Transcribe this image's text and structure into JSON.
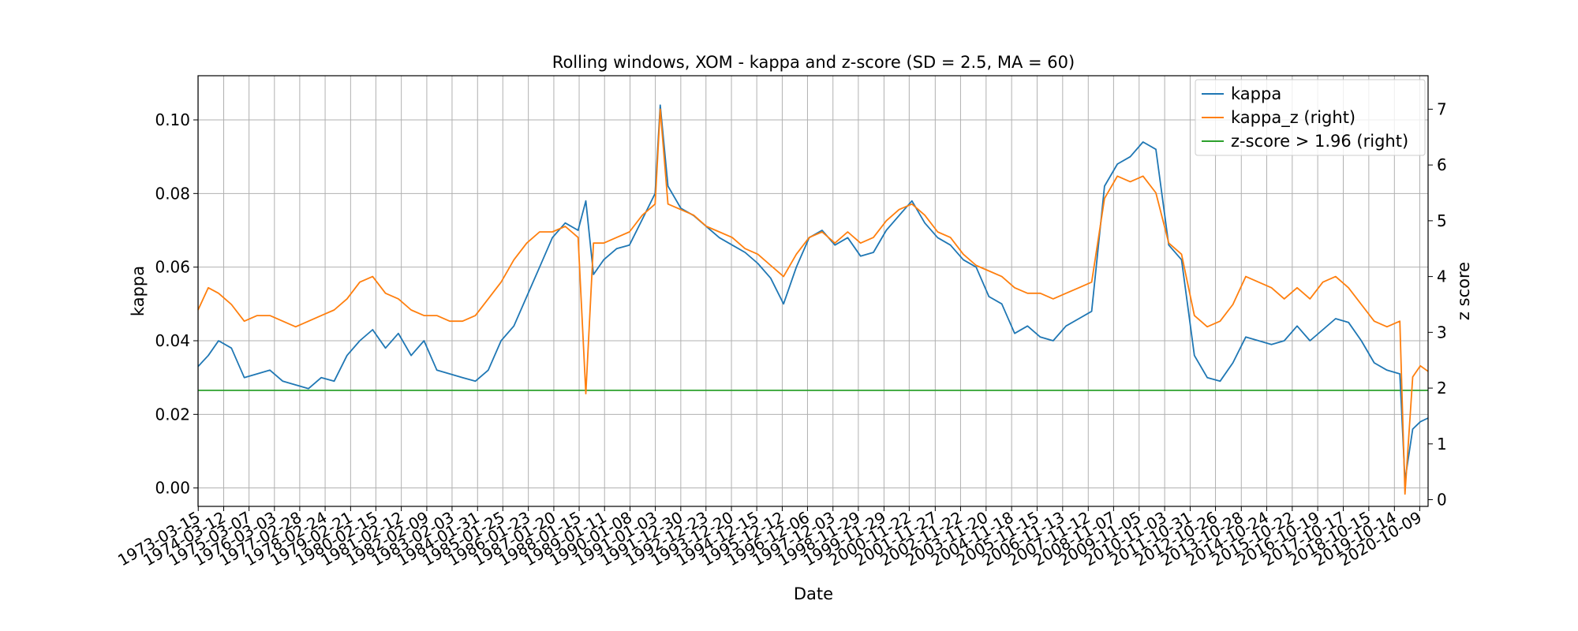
{
  "chart_data": {
    "type": "line",
    "title": "Rolling windows, XOM - kappa and z-score (SD = 2.5, MA = 60)",
    "xlabel": "Date",
    "ylabel": "kappa",
    "ylabel_right": "z score",
    "ylim": [
      -0.005,
      0.112
    ],
    "ylim_right": [
      -0.12,
      7.6
    ],
    "yticks": [
      "0.00",
      "0.02",
      "0.04",
      "0.06",
      "0.08",
      "0.10"
    ],
    "yticks_right": [
      "0",
      "1",
      "2",
      "3",
      "4",
      "5",
      "6",
      "7"
    ],
    "xlim": [
      1973.2,
      2021.1
    ],
    "xticks": [
      "1973-03-15",
      "1974-03-12",
      "1975-03-07",
      "1976-03-03",
      "1977-02-28",
      "1978-02-24",
      "1979-02-21",
      "1980-02-15",
      "1981-02-12",
      "1982-02-09",
      "1983-02-03",
      "1984-01-31",
      "1985-01-25",
      "1986-01-23",
      "1987-01-20",
      "1988-01-15",
      "1989-01-11",
      "1990-01-08",
      "1991-01-03",
      "1991-12-30",
      "1992-12-23",
      "1993-12-20",
      "1994-12-15",
      "1995-12-12",
      "1996-12-06",
      "1997-12-03",
      "1998-11-29",
      "1999-11-29",
      "2000-11-22",
      "2001-11-27",
      "2002-11-22",
      "2003-11-20",
      "2004-11-18",
      "2005-11-15",
      "2006-11-13",
      "2007-11-12",
      "2008-11-07",
      "2009-11-05",
      "2010-11-03",
      "2011-10-31",
      "2012-10-26",
      "2013-10-28",
      "2014-10-24",
      "2015-10-22",
      "2016-10-19",
      "2017-10-17",
      "2018-10-15",
      "2019-10-14",
      "2020-10-09"
    ],
    "grid": true,
    "legend_position": "top-right",
    "series": [
      {
        "name": "kappa",
        "axis": "left",
        "color": "#1f77b4",
        "x": [
          1973.2,
          1973.6,
          1974.0,
          1974.5,
          1975.0,
          1975.5,
          1976.0,
          1976.5,
          1977.0,
          1977.5,
          1978.0,
          1978.5,
          1979.0,
          1979.5,
          1980.0,
          1980.5,
          1981.0,
          1981.5,
          1982.0,
          1982.5,
          1983.0,
          1983.5,
          1984.0,
          1984.5,
          1985.0,
          1985.5,
          1986.0,
          1986.5,
          1987.0,
          1987.5,
          1988.0,
          1988.3,
          1988.6,
          1989.0,
          1989.5,
          1990.0,
          1990.5,
          1991.0,
          1991.2,
          1991.5,
          1992.0,
          1992.5,
          1993.0,
          1993.5,
          1994.0,
          1994.5,
          1995.0,
          1995.5,
          1996.0,
          1996.5,
          1997.0,
          1997.5,
          1998.0,
          1998.5,
          1999.0,
          1999.5,
          2000.0,
          2000.5,
          2001.0,
          2001.5,
          2002.0,
          2002.5,
          2003.0,
          2003.5,
          2004.0,
          2004.5,
          2005.0,
          2005.5,
          2006.0,
          2006.5,
          2007.0,
          2007.5,
          2008.0,
          2008.5,
          2009.0,
          2009.5,
          2010.0,
          2010.5,
          2011.0,
          2011.5,
          2012.0,
          2012.5,
          2013.0,
          2013.5,
          2014.0,
          2014.5,
          2015.0,
          2015.5,
          2016.0,
          2016.5,
          2017.0,
          2017.5,
          2018.0,
          2018.5,
          2019.0,
          2019.5,
          2020.0,
          2020.2,
          2020.5,
          2020.8,
          2021.1
        ],
        "values": [
          0.033,
          0.036,
          0.04,
          0.038,
          0.03,
          0.031,
          0.032,
          0.029,
          0.028,
          0.027,
          0.03,
          0.029,
          0.036,
          0.04,
          0.043,
          0.038,
          0.042,
          0.036,
          0.04,
          0.032,
          0.031,
          0.03,
          0.029,
          0.032,
          0.04,
          0.044,
          0.052,
          0.06,
          0.068,
          0.072,
          0.07,
          0.078,
          0.058,
          0.062,
          0.065,
          0.066,
          0.073,
          0.08,
          0.104,
          0.082,
          0.076,
          0.074,
          0.071,
          0.068,
          0.066,
          0.064,
          0.061,
          0.057,
          0.05,
          0.06,
          0.068,
          0.07,
          0.066,
          0.068,
          0.063,
          0.064,
          0.07,
          0.074,
          0.078,
          0.072,
          0.068,
          0.066,
          0.062,
          0.06,
          0.052,
          0.05,
          0.042,
          0.044,
          0.041,
          0.04,
          0.044,
          0.046,
          0.048,
          0.082,
          0.088,
          0.09,
          0.094,
          0.092,
          0.066,
          0.062,
          0.036,
          0.03,
          0.029,
          0.034,
          0.041,
          0.04,
          0.039,
          0.04,
          0.044,
          0.04,
          0.043,
          0.046,
          0.045,
          0.04,
          0.034,
          0.032,
          0.031,
          0.002,
          0.016,
          0.018,
          0.019
        ]
      },
      {
        "name": "kappa_z (right)",
        "axis": "right",
        "color": "#ff7f0e",
        "x": [
          1973.2,
          1973.6,
          1974.0,
          1974.5,
          1975.0,
          1975.5,
          1976.0,
          1976.5,
          1977.0,
          1977.5,
          1978.0,
          1978.5,
          1979.0,
          1979.5,
          1980.0,
          1980.5,
          1981.0,
          1981.5,
          1982.0,
          1982.5,
          1983.0,
          1983.5,
          1984.0,
          1984.5,
          1985.0,
          1985.5,
          1986.0,
          1986.5,
          1987.0,
          1987.5,
          1988.0,
          1988.3,
          1988.6,
          1989.0,
          1989.5,
          1990.0,
          1990.5,
          1991.0,
          1991.2,
          1991.5,
          1992.0,
          1992.5,
          1993.0,
          1993.5,
          1994.0,
          1994.5,
          1995.0,
          1995.5,
          1996.0,
          1996.5,
          1997.0,
          1997.5,
          1998.0,
          1998.5,
          1999.0,
          1999.5,
          2000.0,
          2000.5,
          2001.0,
          2001.5,
          2002.0,
          2002.5,
          2003.0,
          2003.5,
          2004.0,
          2004.5,
          2005.0,
          2005.5,
          2006.0,
          2006.5,
          2007.0,
          2007.5,
          2008.0,
          2008.5,
          2009.0,
          2009.5,
          2010.0,
          2010.5,
          2011.0,
          2011.5,
          2012.0,
          2012.5,
          2013.0,
          2013.5,
          2014.0,
          2014.5,
          2015.0,
          2015.5,
          2016.0,
          2016.5,
          2017.0,
          2017.5,
          2018.0,
          2018.5,
          2019.0,
          2019.5,
          2020.0,
          2020.2,
          2020.5,
          2020.8,
          2021.1
        ],
        "values": [
          3.4,
          3.8,
          3.7,
          3.5,
          3.2,
          3.3,
          3.3,
          3.2,
          3.1,
          3.2,
          3.3,
          3.4,
          3.6,
          3.9,
          4.0,
          3.7,
          3.6,
          3.4,
          3.3,
          3.3,
          3.2,
          3.2,
          3.3,
          3.6,
          3.9,
          4.3,
          4.6,
          4.8,
          4.8,
          4.9,
          4.7,
          1.9,
          4.6,
          4.6,
          4.7,
          4.8,
          5.1,
          5.3,
          7.0,
          5.3,
          5.2,
          5.1,
          4.9,
          4.8,
          4.7,
          4.5,
          4.4,
          4.2,
          4.0,
          4.4,
          4.7,
          4.8,
          4.6,
          4.8,
          4.6,
          4.7,
          5.0,
          5.2,
          5.3,
          5.1,
          4.8,
          4.7,
          4.4,
          4.2,
          4.1,
          4.0,
          3.8,
          3.7,
          3.7,
          3.6,
          3.7,
          3.8,
          3.9,
          5.4,
          5.8,
          5.7,
          5.8,
          5.5,
          4.6,
          4.4,
          3.3,
          3.1,
          3.2,
          3.5,
          4.0,
          3.9,
          3.8,
          3.6,
          3.8,
          3.6,
          3.9,
          4.0,
          3.8,
          3.5,
          3.2,
          3.1,
          3.2,
          0.1,
          2.2,
          2.4,
          2.3
        ]
      },
      {
        "name": "z-score > 1.96 (right)",
        "axis": "right",
        "color": "#2ca02c",
        "x": [
          1973.2,
          2021.1
        ],
        "values": [
          1.96,
          1.96
        ]
      }
    ]
  }
}
